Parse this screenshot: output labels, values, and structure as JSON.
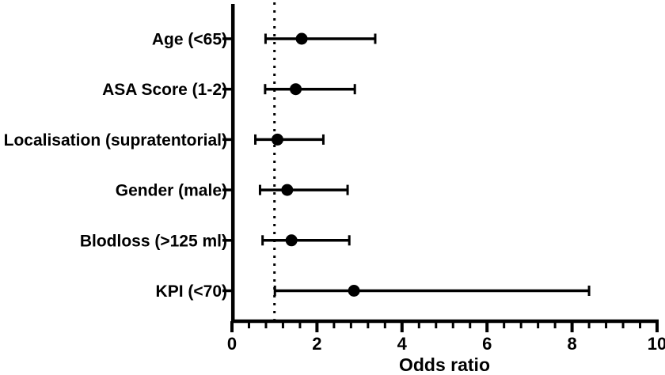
{
  "figure": {
    "background_color": "#ffffff",
    "ink_color": "#000000"
  },
  "chart_data": {
    "type": "scatter",
    "variant": "forest-plot",
    "title": "",
    "xlabel": "Odds ratio",
    "ylabel": "",
    "xlim": [
      0,
      10
    ],
    "x_major_ticks": [
      0,
      2,
      4,
      6,
      8,
      10
    ],
    "x_tick_labels": [
      "0",
      "2",
      "4",
      "6",
      "8",
      "10"
    ],
    "x_minor_tick_step": 0.4,
    "grid": false,
    "legend": false,
    "reference_line": {
      "x": 1,
      "style": "dotted"
    },
    "marker": "filled-circle",
    "series_color": "#000000",
    "categories": [
      "Age (<65)",
      "ASA Score (1-2)",
      "Localisation (supratentorial)",
      "Gender (male)",
      "Blodloss (>125 ml)",
      "KPI (<70)"
    ],
    "points": [
      {
        "label": "Age (<65)",
        "odds_ratio": 1.64,
        "ci_low": 0.79,
        "ci_high": 3.37
      },
      {
        "label": "ASA Score (1-2)",
        "odds_ratio": 1.5,
        "ci_low": 0.78,
        "ci_high": 2.89
      },
      {
        "label": "Localisation (supratentorial)",
        "odds_ratio": 1.07,
        "ci_low": 0.55,
        "ci_high": 2.15
      },
      {
        "label": "Gender (male)",
        "odds_ratio": 1.3,
        "ci_low": 0.66,
        "ci_high": 2.72
      },
      {
        "label": "Blodloss (>125 ml)",
        "odds_ratio": 1.4,
        "ci_low": 0.72,
        "ci_high": 2.76
      },
      {
        "label": "KPI (<70)",
        "odds_ratio": 2.87,
        "ci_low": 1.01,
        "ci_high": 8.4
      }
    ]
  }
}
